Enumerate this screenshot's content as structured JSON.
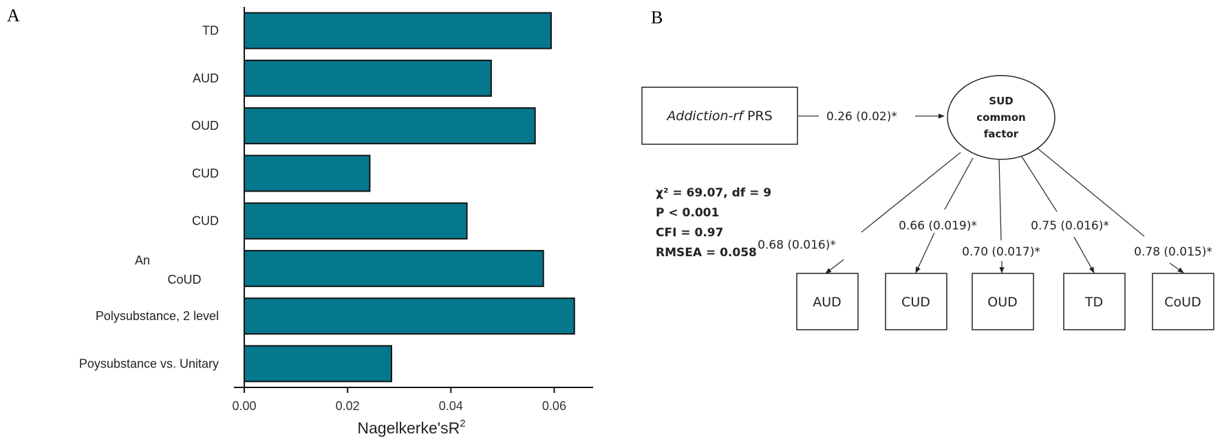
{
  "chart_data": [
    {
      "panel": "A",
      "type": "bar",
      "orientation": "horizontal",
      "categories": [
        "TD",
        "AUD",
        "OUD",
        "CUD",
        "CUD",
        "An CoUD",
        "Polysubstance, 2 level",
        "Poysubstance vs. Unitary"
      ],
      "category_display": [
        {
          "text": "TD"
        },
        {
          "text": "AUD"
        },
        {
          "text": "OUD"
        },
        {
          "text": "CUD"
        },
        {
          "text": "CUD"
        },
        {
          "text": "An",
          "text2": "CoUD"
        },
        {
          "text": "Polysubstance, 2 level"
        },
        {
          "text": "Poysubstance vs. Unitary"
        }
      ],
      "values": [
        0.0594,
        0.0478,
        0.0563,
        0.0243,
        0.0431,
        0.0579,
        0.0639,
        0.0285
      ],
      "xlabel": "Nagelkerke's R²",
      "xlabel_main": "Nagelkerke'sR",
      "xlabel_sup": "2",
      "ylabel": "",
      "xlim": [
        0,
        0.067
      ],
      "xticks": [
        0,
        0.02,
        0.04,
        0.06
      ],
      "xtick_labels": [
        "0.00",
        "0.02",
        "0.04",
        "0.06"
      ],
      "bar_color": "#06788d",
      "grid": false
    },
    {
      "panel": "B",
      "type": "diagram",
      "predictor": {
        "italic": "Addiction-rf",
        "rest": " PRS"
      },
      "predictor_path": "0.26 (0.02)*",
      "factor_lines": [
        "SUD",
        "common",
        "factor"
      ],
      "fit_stats": [
        "χ² = 69.07, df = 9",
        "P < 0.001",
        "CFI = 0.97",
        "RMSEA = 0.058"
      ],
      "indicators": [
        {
          "name": "AUD",
          "loading": "0.68 (0.016)*"
        },
        {
          "name": "CUD",
          "loading": "0.66 (0.019)*"
        },
        {
          "name": "OUD",
          "loading": "0.70 (0.017)*"
        },
        {
          "name": "TD",
          "loading": "0.75 (0.016)*"
        },
        {
          "name": "CoUD",
          "loading": "0.78 (0.015)*"
        }
      ]
    }
  ],
  "panel_labels": {
    "a": "A",
    "b": "B"
  }
}
